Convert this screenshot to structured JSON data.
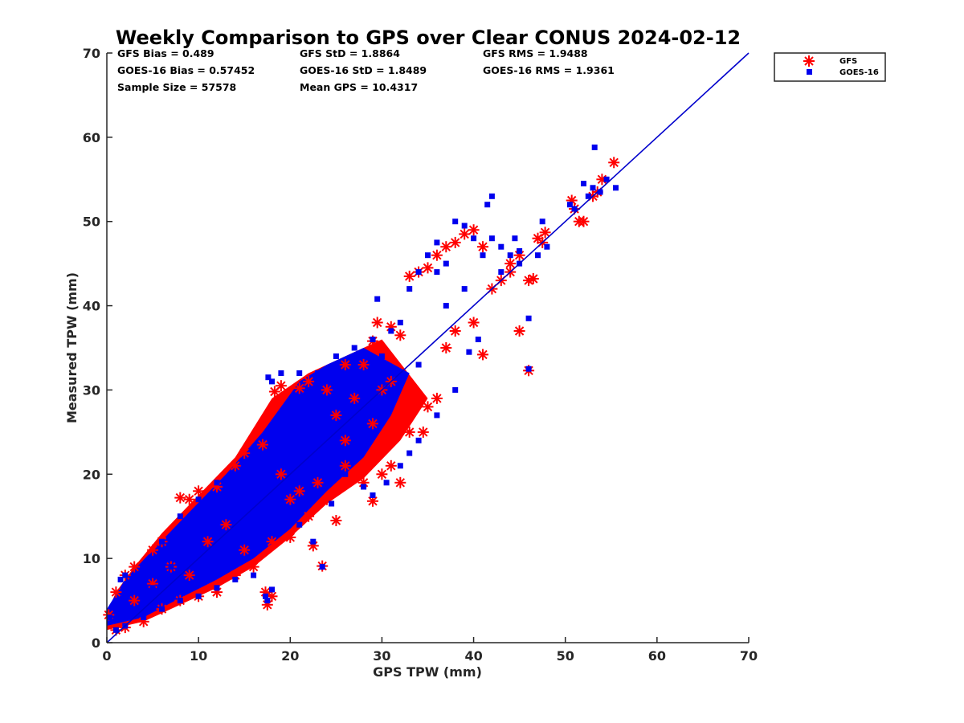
{
  "chart_data": {
    "type": "scatter",
    "title": "Weekly Comparison to GPS over Clear CONUS 2024-02-12",
    "xlabel": "GPS TPW (mm)",
    "ylabel": "Measured TPW (mm)",
    "xlim": [
      0,
      70
    ],
    "ylim": [
      0,
      70
    ],
    "xticks": [
      "0",
      "10",
      "20",
      "30",
      "40",
      "50",
      "60",
      "70"
    ],
    "yticks": [
      "0",
      "10",
      "20",
      "30",
      "40",
      "50",
      "60",
      "70"
    ],
    "stats": [
      {
        "label": "GFS Bias = 0.489"
      },
      {
        "label": "GFS StD = 1.8864"
      },
      {
        "label": "GFS RMS = 1.9488"
      },
      {
        "label": "GOES-16 Bias = 0.57452"
      },
      {
        "label": "GOES-16 StD = 1.8489"
      },
      {
        "label": "GOES-16 RMS = 1.9361"
      },
      {
        "label": "Sample Size = 57578"
      },
      {
        "label": "Mean GPS = 10.4317"
      }
    ],
    "one_to_one_line": {
      "x": [
        0,
        70
      ],
      "y": [
        0,
        70
      ],
      "color": "#0000cc"
    },
    "series": [
      {
        "name": "GFS",
        "marker": "asterisk",
        "color": "#ff0000",
        "points": [
          [
            0.2,
            3.3
          ],
          [
            1,
            6
          ],
          [
            2,
            8
          ],
          [
            3,
            9
          ],
          [
            5,
            11
          ],
          [
            6,
            12
          ],
          [
            8,
            17.2
          ],
          [
            9,
            17
          ],
          [
            10,
            18
          ],
          [
            12,
            18.5
          ],
          [
            14,
            21
          ],
          [
            15,
            22.5
          ],
          [
            17,
            23.5
          ],
          [
            18.3,
            29.8
          ],
          [
            19,
            30.5
          ],
          [
            21,
            30.2
          ],
          [
            22,
            31
          ],
          [
            24,
            30
          ],
          [
            26,
            33
          ],
          [
            29,
            35.8
          ],
          [
            29.5,
            38
          ],
          [
            31,
            37.5
          ],
          [
            32,
            36.5
          ],
          [
            33,
            43.5
          ],
          [
            34,
            44
          ],
          [
            35,
            44.5
          ],
          [
            36,
            46
          ],
          [
            37,
            47
          ],
          [
            38,
            47.5
          ],
          [
            39,
            48.5
          ],
          [
            40,
            49
          ],
          [
            41,
            47
          ],
          [
            42,
            42
          ],
          [
            43,
            43
          ],
          [
            44,
            45
          ],
          [
            45,
            46
          ],
          [
            46,
            43
          ],
          [
            47,
            48
          ],
          [
            47.5,
            47.5
          ],
          [
            46.5,
            43.2
          ],
          [
            45,
            37
          ],
          [
            46,
            32.3
          ],
          [
            41,
            34.2
          ],
          [
            40,
            38
          ],
          [
            38,
            37
          ],
          [
            37,
            35
          ],
          [
            35,
            28
          ],
          [
            36,
            29
          ],
          [
            33,
            25
          ],
          [
            32,
            19
          ],
          [
            31,
            21
          ],
          [
            30,
            20
          ],
          [
            29,
            16.8
          ],
          [
            28,
            19
          ],
          [
            26,
            21
          ],
          [
            24,
            17
          ],
          [
            23.5,
            9.1
          ],
          [
            22.5,
            11.5
          ],
          [
            20,
            12.5
          ],
          [
            18,
            12
          ],
          [
            17.5,
            4.5
          ],
          [
            17.3,
            6
          ],
          [
            18,
            5.5
          ],
          [
            16,
            9
          ],
          [
            14,
            8
          ],
          [
            12,
            6
          ],
          [
            10,
            5.5
          ],
          [
            8,
            5
          ],
          [
            6,
            4
          ],
          [
            4,
            2.5
          ],
          [
            2,
            1.8
          ],
          [
            1,
            1.5
          ],
          [
            50.7,
            52.5
          ],
          [
            51,
            51.5
          ],
          [
            51.5,
            50
          ],
          [
            52,
            50
          ],
          [
            53,
            53
          ],
          [
            53.5,
            53.5
          ],
          [
            54,
            55
          ],
          [
            55.3,
            57
          ],
          [
            47.8,
            48.7
          ],
          [
            44,
            44
          ],
          [
            34.5,
            25
          ],
          [
            21,
            18
          ],
          [
            25,
            27
          ],
          [
            27,
            29
          ],
          [
            28,
            33
          ],
          [
            30,
            30
          ],
          [
            15,
            11
          ],
          [
            13,
            14
          ],
          [
            11,
            12
          ],
          [
            9,
            8
          ],
          [
            7,
            9
          ],
          [
            5,
            7
          ],
          [
            3,
            5
          ],
          [
            25,
            14.5
          ],
          [
            22,
            15
          ],
          [
            20,
            17
          ],
          [
            19,
            20
          ],
          [
            23,
            19
          ],
          [
            26,
            24
          ],
          [
            29,
            26
          ],
          [
            31,
            31
          ]
        ]
      },
      {
        "name": "GOES-16",
        "marker": "square",
        "color": "#0000ee",
        "points": [
          [
            0.3,
            3
          ],
          [
            1.5,
            7.5
          ],
          [
            2,
            8
          ],
          [
            4,
            9
          ],
          [
            6,
            12
          ],
          [
            8,
            15
          ],
          [
            10,
            17
          ],
          [
            12,
            19
          ],
          [
            14,
            20
          ],
          [
            16,
            22
          ],
          [
            17.6,
            31.5
          ],
          [
            18,
            31
          ],
          [
            19,
            32
          ],
          [
            21,
            32
          ],
          [
            23,
            32
          ],
          [
            25,
            34
          ],
          [
            27,
            35
          ],
          [
            29,
            36
          ],
          [
            29.5,
            40.8
          ],
          [
            31,
            37
          ],
          [
            32,
            38
          ],
          [
            33,
            42
          ],
          [
            34,
            44
          ],
          [
            35,
            46
          ],
          [
            36,
            47.5
          ],
          [
            37,
            45
          ],
          [
            38,
            50
          ],
          [
            39,
            49.5
          ],
          [
            40,
            48
          ],
          [
            41,
            46
          ],
          [
            41.5,
            52
          ],
          [
            42,
            48
          ],
          [
            43,
            47
          ],
          [
            44,
            46
          ],
          [
            45,
            45
          ],
          [
            46,
            38.5
          ],
          [
            47,
            46
          ],
          [
            47.5,
            50
          ],
          [
            46,
            32.5
          ],
          [
            40.5,
            36
          ],
          [
            39.5,
            34.5
          ],
          [
            38,
            30
          ],
          [
            36,
            27
          ],
          [
            34,
            24
          ],
          [
            33,
            22.5
          ],
          [
            32,
            21
          ],
          [
            30.5,
            19
          ],
          [
            29,
            17.5
          ],
          [
            28,
            18.5
          ],
          [
            26,
            20
          ],
          [
            24.5,
            16.5
          ],
          [
            23.5,
            9
          ],
          [
            22.5,
            12
          ],
          [
            21,
            14
          ],
          [
            19,
            15
          ],
          [
            17.5,
            5
          ],
          [
            18,
            6.3
          ],
          [
            17.3,
            5.5
          ],
          [
            16,
            8
          ],
          [
            14,
            7.5
          ],
          [
            12,
            6.5
          ],
          [
            10,
            5.5
          ],
          [
            8,
            5
          ],
          [
            6,
            4
          ],
          [
            4,
            3
          ],
          [
            2,
            2
          ],
          [
            1,
            1.5
          ],
          [
            50.5,
            52
          ],
          [
            51,
            51.5
          ],
          [
            52,
            54.5
          ],
          [
            52.5,
            53
          ],
          [
            53,
            54
          ],
          [
            53.2,
            58.8
          ],
          [
            53.8,
            53.5
          ],
          [
            54.5,
            55
          ],
          [
            55.5,
            54
          ],
          [
            48,
            47
          ],
          [
            42,
            53
          ],
          [
            44.5,
            48
          ],
          [
            36,
            44
          ],
          [
            30,
            34
          ],
          [
            26,
            30
          ],
          [
            24,
            28
          ],
          [
            22,
            26
          ],
          [
            20,
            23
          ],
          [
            15,
            17
          ],
          [
            13,
            15
          ],
          [
            11,
            13
          ],
          [
            9,
            11
          ],
          [
            7,
            9
          ],
          [
            5,
            6.5
          ],
          [
            3,
            4
          ],
          [
            25,
            22
          ],
          [
            28,
            27
          ],
          [
            31,
            29
          ],
          [
            34,
            33
          ],
          [
            37,
            40
          ],
          [
            39,
            42
          ],
          [
            43,
            44
          ],
          [
            45,
            46.5
          ]
        ]
      }
    ],
    "legend": {
      "placement": "top-right",
      "entries": [
        "GFS",
        "GOES-16"
      ]
    }
  }
}
